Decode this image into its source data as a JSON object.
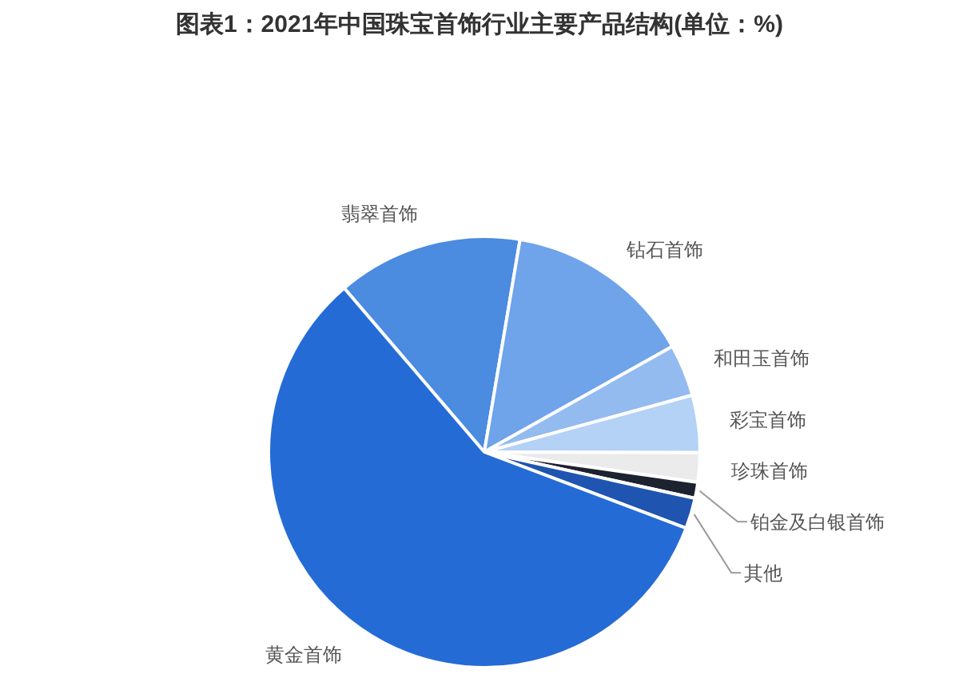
{
  "chart_data": {
    "type": "pie",
    "title": "图表1：2021年中国珠宝首饰行业主要产品结构(单位：%)",
    "categories": [
      "翡翠首饰",
      "钻石首饰",
      "和田玉首饰",
      "彩宝首饰",
      "珍珠首饰",
      "铂金及白银首饰",
      "其他",
      "黄金首饰"
    ],
    "values": [
      13.9,
      14.2,
      3.9,
      4.3,
      2.2,
      1.2,
      2.3,
      58.0
    ],
    "colors": [
      "#4b8be0",
      "#6fa3ea",
      "#93bbf0",
      "#b4d1f6",
      "#ebebeb",
      "#1c2230",
      "#1f55b0",
      "#256bd6"
    ]
  }
}
